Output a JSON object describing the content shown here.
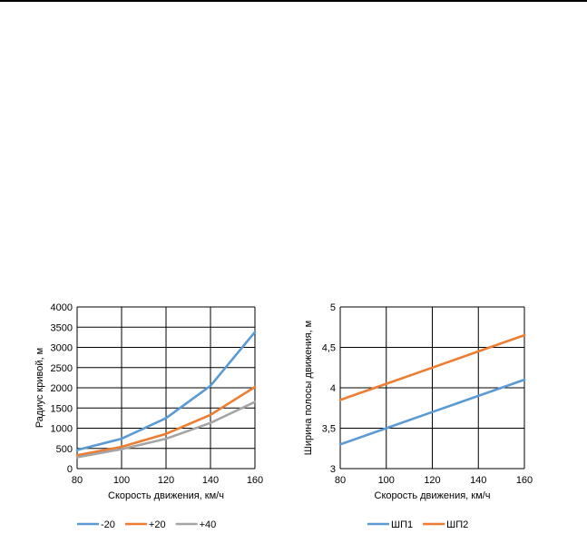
{
  "chart_data": [
    {
      "type": "line",
      "xlabel": "Скорость движения, км/ч",
      "ylabel": "Радиус кривой, м",
      "x": [
        80,
        100,
        120,
        140,
        160
      ],
      "xticks": [
        "80",
        "100",
        "120",
        "140",
        "160"
      ],
      "xlim": [
        80,
        160
      ],
      "ylim": [
        0,
        4000
      ],
      "yticks": [
        "0",
        "500",
        "1000",
        "1500",
        "2000",
        "2500",
        "3000",
        "3500",
        "4000"
      ],
      "grid": true,
      "legend_position": "bottom",
      "series": [
        {
          "name": "-20",
          "color": "#5B9BD5",
          "values": [
            460,
            740,
            1250,
            2050,
            3380
          ]
        },
        {
          "name": "+20",
          "color": "#ED7D31",
          "values": [
            330,
            540,
            860,
            1330,
            2020
          ]
        },
        {
          "name": "+40",
          "color": "#A5A5A5",
          "values": [
            280,
            480,
            740,
            1130,
            1650
          ]
        }
      ]
    },
    {
      "type": "line",
      "xlabel": "Скорость движения, км/ч",
      "ylabel": "Ширина полосы движения, м",
      "x": [
        80,
        100,
        120,
        140,
        160
      ],
      "xticks": [
        "80",
        "100",
        "120",
        "140",
        "160"
      ],
      "xlim": [
        80,
        160
      ],
      "ylim": [
        3,
        5
      ],
      "yticks": [
        "3",
        "3,5",
        "4",
        "4,5",
        "5"
      ],
      "grid": true,
      "legend_position": "bottom",
      "series": [
        {
          "name": "ШП1",
          "color": "#5B9BD5",
          "values": [
            3.3,
            3.5,
            3.7,
            3.9,
            4.1
          ]
        },
        {
          "name": "ШП2",
          "color": "#ED7D31",
          "values": [
            3.85,
            4.05,
            4.25,
            4.45,
            4.65
          ]
        }
      ]
    }
  ]
}
